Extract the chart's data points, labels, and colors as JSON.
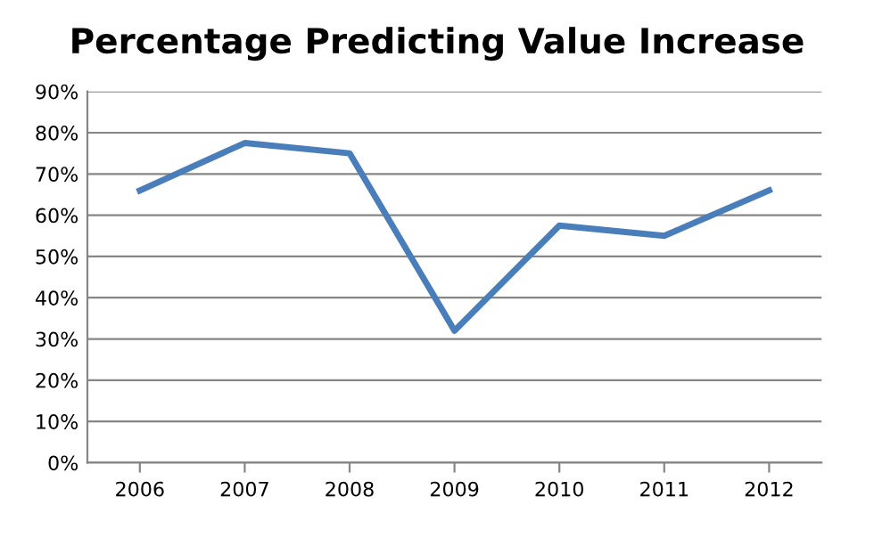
{
  "chart_data": {
    "type": "line",
    "title": "Percentage Predicting Value Increase",
    "categories": [
      "2006",
      "2007",
      "2008",
      "2009",
      "2010",
      "2011",
      "2012"
    ],
    "series": [
      {
        "color": "#4a7ebb",
        "values": [
          66,
          77.5,
          75,
          32,
          57.5,
          55,
          66
        ]
      }
    ],
    "ylim": [
      0,
      90
    ],
    "yticks": [
      {
        "value": 0,
        "label": "0%"
      },
      {
        "value": 10,
        "label": "10%"
      },
      {
        "value": 20,
        "label": "20%"
      },
      {
        "value": 30,
        "label": "30%"
      },
      {
        "value": 40,
        "label": "40%"
      },
      {
        "value": 50,
        "label": "50%"
      },
      {
        "value": 60,
        "label": "60%"
      },
      {
        "value": 70,
        "label": "70%"
      },
      {
        "value": 80,
        "label": "80%"
      },
      {
        "value": 90,
        "label": "90%"
      }
    ],
    "grid": "y",
    "marker": "none",
    "line_style": "solid",
    "legend": false
  }
}
